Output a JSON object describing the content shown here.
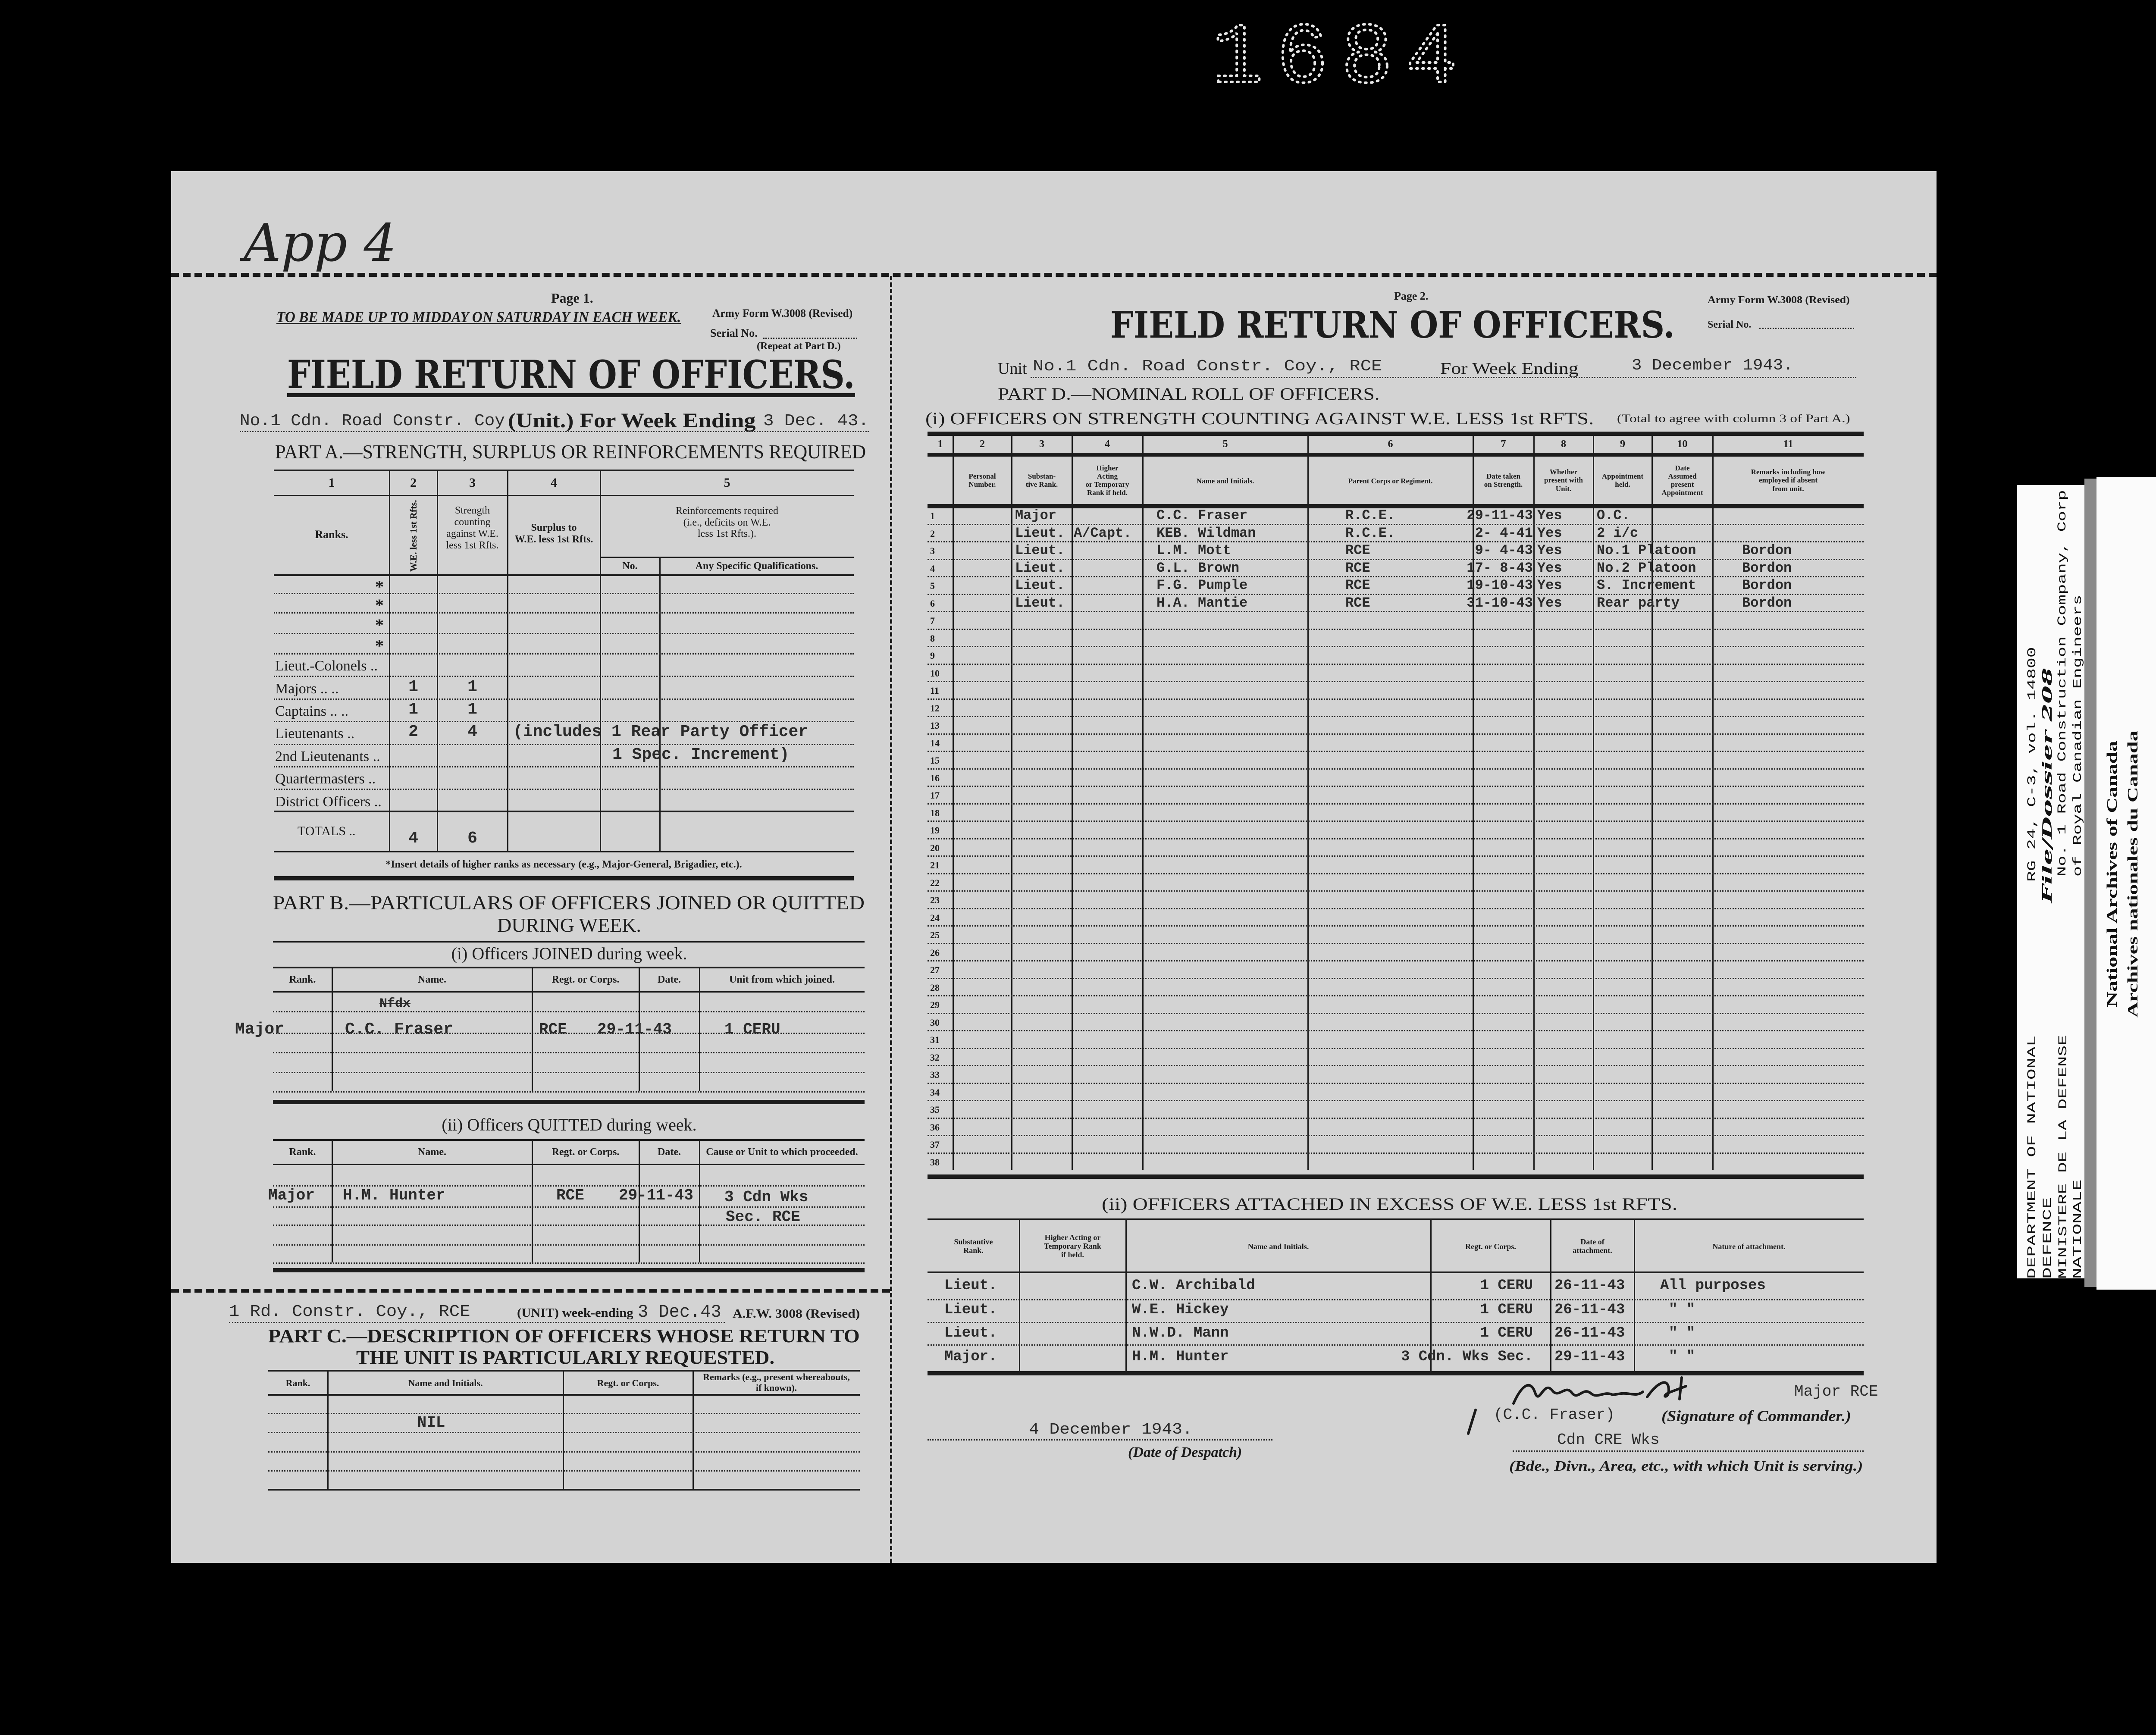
{
  "stamp_number": "1684",
  "handwritten_note": "App 4",
  "page1": {
    "page_label": "Page 1.",
    "instruction": "TO BE MADE UP TO MIDDAY ON SATURDAY IN EACH WEEK.",
    "army_form": "Army Form W.3008 (Revised)",
    "serial_no_label": "Serial No.",
    "repeat_note": "(Repeat at Part D.)",
    "title": "FIELD RETURN OF OFFICERS.",
    "unit_value": "No.1 Cdn. Road Constr. Coy",
    "unit_label": "(Unit.) For Week Ending",
    "week_ending": "3 Dec. 43.",
    "part_a": {
      "heading": "PART A.—STRENGTH, SURPLUS OR REINFORCEMENTS REQUIRED",
      "col_numbers": [
        "1",
        "2",
        "3",
        "4",
        "5"
      ],
      "headers": {
        "ranks": "Ranks.",
        "we": "W.E. less 1st Rfts.",
        "strength": "Strength\ncounting\nagainst W.E.\nless 1st Rfts.",
        "surplus": "Surplus to\nW.E. less 1st Rfts.",
        "reinforcements": "Reinforcements required\n(i.e., deficits on W.E.\nless 1st Rfts.).",
        "no": "No.",
        "qualifications": "Any Specific Qualifications."
      },
      "star_marks": [
        "*",
        "*",
        "*",
        "*"
      ],
      "ranks": [
        {
          "label": "Lieut.-Colonels ..",
          "we": "",
          "strength": ""
        },
        {
          "label": "Majors  ..     ..",
          "we": "1",
          "strength": "1"
        },
        {
          "label": "Captains ..    ..",
          "we": "1",
          "strength": "1"
        },
        {
          "label": "Lieutenants     ..",
          "we": "2",
          "strength": "4"
        },
        {
          "label": "2nd Lieutenants ..",
          "we": "",
          "strength": ""
        },
        {
          "label": "Quartermasters  ..",
          "we": "",
          "strength": ""
        },
        {
          "label": "District Officers ..",
          "we": "",
          "strength": ""
        }
      ],
      "remarks": [
        "(includes 1 Rear Party Officer",
        "1 Spec. Increment)"
      ],
      "totals": {
        "label": "TOTALS  ..",
        "we": "4",
        "strength": "6"
      },
      "footnote": "*Insert details of higher ranks as necessary (e.g., Major-General, Brigadier, etc.)."
    },
    "part_b": {
      "heading_line1": "PART B.—PARTICULARS OF OFFICERS JOINED OR QUITTED",
      "heading_line2": "DURING WEEK.",
      "joined": {
        "title": "(i) Officers JOINED during week.",
        "headers": [
          "Rank.",
          "Name.",
          "Regt. or Corps.",
          "Date.",
          "Unit from which joined."
        ],
        "struck_text": "Nfdx",
        "rows": [
          {
            "rank": "Major",
            "name": "C.C. Fraser",
            "corps": "RCE",
            "date": "29-11-43",
            "unit": "1 CERU"
          }
        ]
      },
      "quitted": {
        "title": "(ii) Officers QUITTED during week.",
        "headers": [
          "Rank.",
          "Name.",
          "Regt. or Corps.",
          "Date.",
          "Cause or Unit to which proceeded."
        ],
        "rows": [
          {
            "rank": "Major",
            "name": "H.M. Hunter",
            "corps": "RCE",
            "date": "29-11-43",
            "cause_line1": "3 Cdn Wks",
            "cause_line2": "Sec. RCE"
          }
        ]
      }
    },
    "part_c": {
      "unit_value": "1 Rd. Constr. Coy., RCE",
      "unit_label": "(UNIT) week-ending",
      "week_ending": "3 Dec.43",
      "form_ref": "A.F.W. 3008 (Revised)",
      "heading_line1": "PART C.—DESCRIPTION OF OFFICERS WHOSE RETURN TO",
      "heading_line2": "THE UNIT IS PARTICULARLY REQUESTED.",
      "headers": [
        "Rank.",
        "Name and Initials.",
        "Regt. or Corps.",
        "Remarks (e.g., present whereabouts,\nif known)."
      ],
      "entry": "NIL"
    }
  },
  "page2": {
    "page_label": "Page 2.",
    "army_form": "Army Form W.3008 (Revised)",
    "serial_no_label": "Serial No.",
    "title": "FIELD RETURN OF OFFICERS.",
    "unit_label": "Unit",
    "unit_value": "No.1 Cdn. Road Constr. Coy., RCE",
    "week_label": "For Week Ending",
    "week_ending": "3 December 1943.",
    "part_d_heading": "PART D.—NOMINAL ROLL OF OFFICERS.",
    "section_i": {
      "title": "(i) OFFICERS ON STRENGTH COUNTING AGAINST W.E. LESS 1st RFTS.",
      "note": "(Total to agree with column 3 of Part A.)",
      "col_numbers": [
        "1",
        "2",
        "3",
        "4",
        "5",
        "6",
        "7",
        "8",
        "9",
        "10",
        "11"
      ],
      "headers": [
        "",
        "Personal\nNumber.",
        "Substan-\ntive Rank.",
        "Higher\nActing\nor Temporary\nRank if held.",
        "Name and Initials.",
        "Parent Corps or Regiment.",
        "Date taken\non Strength.",
        "Whether\npresent with\nUnit.",
        "Appointment\nheld.",
        "Date\nAssumed\npresent\nAppointment",
        "Remarks including how\nemployed if absent\nfrom unit."
      ],
      "row_count": 38,
      "rows": [
        {
          "rank": "Major",
          "acting": "",
          "name": "C.C. Fraser",
          "corps": "R.C.E.",
          "date": "29-11-43",
          "present": "Yes",
          "appointment": "O.C.",
          "remarks": ""
        },
        {
          "rank": "Lieut.",
          "acting": "A/Capt.",
          "name": "KEB. Wildman",
          "corps": "R.C.E.",
          "date": "2- 4-41",
          "present": "Yes",
          "appointment": "2 i/c",
          "remarks": ""
        },
        {
          "rank": "Lieut.",
          "acting": "",
          "name": "L.M. Mott",
          "corps": "RCE",
          "date": "9- 4-43",
          "present": "Yes",
          "appointment": "No.1 Platoon",
          "remarks": "Bordon"
        },
        {
          "rank": "Lieut.",
          "acting": "",
          "name": "G.L. Brown",
          "corps": "RCE",
          "date": "17- 8-43",
          "present": "Yes",
          "appointment": "No.2 Platoon",
          "remarks": "Bordon"
        },
        {
          "rank": "Lieut.",
          "acting": "",
          "name": "F.G. Pumple",
          "corps": "RCE",
          "date": "19-10-43",
          "present": "Yes",
          "appointment": "S. Increment",
          "remarks": "Bordon"
        },
        {
          "rank": "Lieut.",
          "acting": "",
          "name": "H.A. Mantie",
          "corps": "RCE",
          "date": "31-10-43",
          "present": "Yes",
          "appointment": "Rear party",
          "remarks": "Bordon"
        }
      ]
    },
    "section_ii": {
      "title": "(ii) OFFICERS ATTACHED IN EXCESS OF W.E. LESS 1st RFTS.",
      "headers": [
        "Substantive\nRank.",
        "Higher Acting or\nTemporary Rank\nif held.",
        "Name and Initials.",
        "Regt. or Corps.",
        "Date of\nattachment.",
        "Nature of attachment."
      ],
      "rows": [
        {
          "rank": "Lieut.",
          "acting": "",
          "name": "C.W. Archibald",
          "corps": "1 CERU",
          "date": "26-11-43",
          "nature": "All purposes"
        },
        {
          "rank": "Lieut.",
          "acting": "",
          "name": "W.E. Hickey",
          "corps": "1 CERU",
          "date": "26-11-43",
          "nature": "\"      \""
        },
        {
          "rank": "Lieut.",
          "acting": "",
          "name": "N.W.D. Mann",
          "corps": "1 CERU",
          "date": "26-11-43",
          "nature": "\"      \""
        },
        {
          "rank": "Major.",
          "acting": "",
          "name": "H.M. Hunter",
          "corps": "3 Cdn. Wks Sec.",
          "date": "29-11-43",
          "nature": "\"      \""
        }
      ]
    },
    "signature": {
      "rank_typed": "Major RCE",
      "name_typed": "(C.C. Fraser)",
      "label": "(Signature of Commander.)",
      "despatch_date": "4 December 1943.",
      "despatch_label": "(Date of Despatch)",
      "formation": "Cdn CRE Wks",
      "formation_label": "(Bde., Divn., Area, etc., with which Unit is serving.)"
    }
  },
  "archive_label": {
    "dept_line1": "DEPARTMENT OF NATIONAL",
    "dept_line2": "DEFENCE",
    "dept_line3": "MINISTERE DE LA DEFENSE",
    "dept_line4": "NATIONALE",
    "reference": "RG 24, C-3, vol. 14800",
    "file": "File/Dossier 208",
    "unit_line1": "No. 1 Road Construction Company, Corp",
    "unit_line2": "of Royal Canadian Engineers",
    "archives_en": "National Archives of Canada",
    "archives_fr": "Archives nationales du Canada"
  }
}
